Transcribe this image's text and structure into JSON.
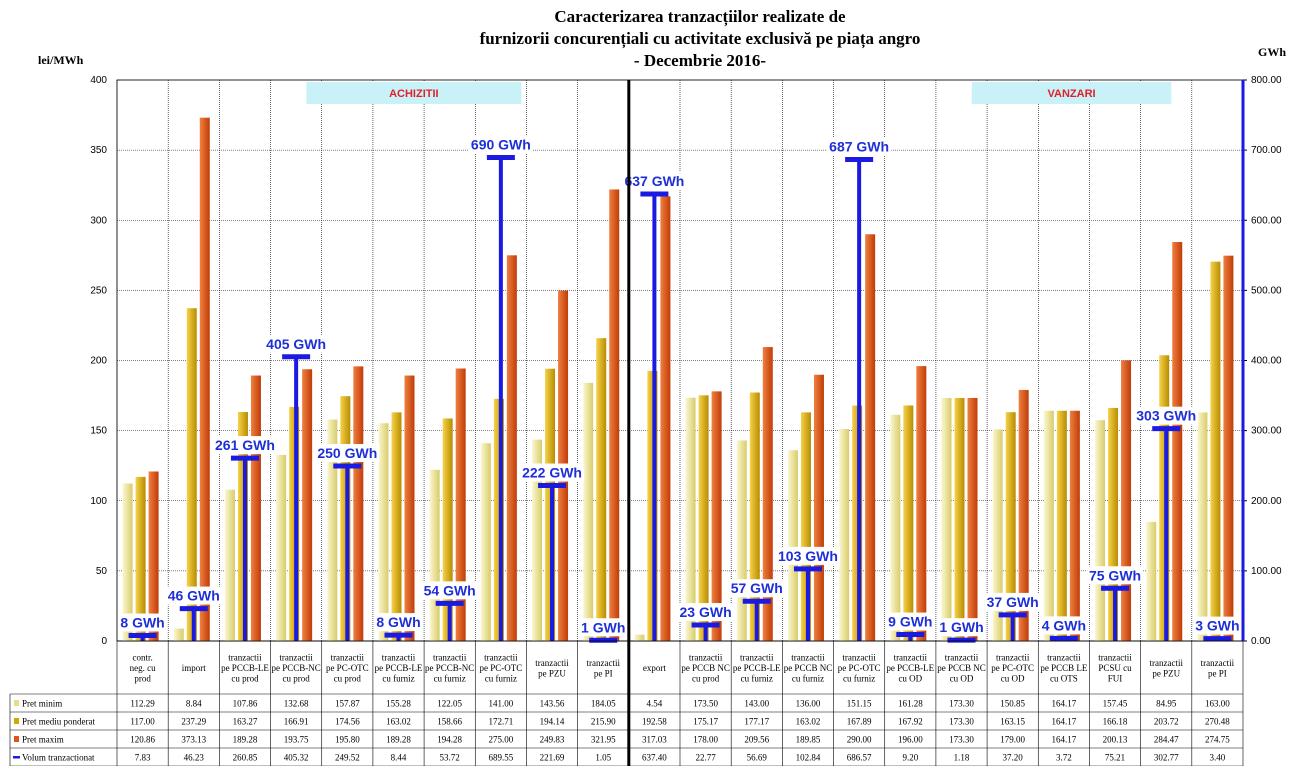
{
  "chart_data": {
    "type": "bar",
    "title_lines": [
      "Caracterizarea tranzacțiilor realizate de",
      "furnizorii concurențiali cu activitate exclusivă pe piața angro",
      "- Decembrie 2016-"
    ],
    "y_left_unit": "lei/MWh",
    "y_right_unit": "GWh",
    "ylim_left": [
      0,
      400
    ],
    "ylim_right": [
      0,
      800
    ],
    "y_left_ticks": [
      "0",
      "50",
      "100",
      "150",
      "200",
      "250",
      "300",
      "350",
      "400"
    ],
    "y_right_ticks": [
      "0.00",
      "100.00",
      "200.00",
      "300.00",
      "400.00",
      "500.00",
      "600.00",
      "700.00",
      "800.00"
    ],
    "sections": [
      "ACHIZITII",
      "VANZARI"
    ],
    "categories": [
      "contr. neg. cu prod",
      "import",
      "tranzactii pe PCCB-LE cu prod",
      "tranzactii pe PCCB-NC cu prod",
      "tranzactii pe PC-OTC cu prod",
      "tranzactii pe PCCB-LE cu furniz",
      "tranzactii pe PCCB-NC cu furniz",
      "tranzactii pe PC-OTC cu furniz",
      "tranzactii pe PZU",
      "tranzactii pe PI",
      "export",
      "tranzactii pe PCCB NC cu prod",
      "tranzactii pe PCCB-LE cu furniz",
      "tranzactii pe PCCB NC cu furniz",
      "tranzactii pe PC-OTC cu furniz",
      "tranzactii pe PCCB-LE cu OD",
      "tranzactii pe PCCB NC cu OD",
      "tranzactii pe PC-OTC cu OD",
      "tranzactii pe PCCB LE cu OTS",
      "tranzactii PCSU cu FUI",
      "tranzactii pe PZU",
      "tranzactii pe PI"
    ],
    "series": [
      {
        "name": "Pret minim",
        "color": "#e6dc8c",
        "values": [
          112.29,
          8.84,
          107.86,
          132.68,
          157.87,
          155.28,
          122.05,
          141.0,
          143.56,
          184.05,
          4.54,
          173.5,
          143.0,
          136.0,
          151.15,
          161.28,
          173.3,
          150.85,
          164.17,
          157.45,
          84.95,
          163.0
        ],
        "labels": [
          "112.29",
          "8.84",
          "107.86",
          "132.68",
          "157.87",
          "155.28",
          "122.05",
          "141.00",
          "143.56",
          "184.05",
          "4.54",
          "173.50",
          "143.00",
          "136.00",
          "151.15",
          "161.28",
          "173.30",
          "150.85",
          "164.17",
          "157.45",
          "84.95",
          "163.00"
        ]
      },
      {
        "name": "Pret mediu ponderat",
        "color": "#d4a800",
        "values": [
          117.0,
          237.29,
          163.27,
          166.91,
          174.56,
          163.02,
          158.66,
          172.71,
          194.14,
          215.9,
          192.58,
          175.17,
          177.17,
          163.02,
          167.89,
          167.92,
          173.3,
          163.15,
          164.17,
          166.18,
          203.72,
          270.48
        ],
        "labels": [
          "117.00",
          "237.29",
          "163.27",
          "166.91",
          "174.56",
          "163.02",
          "158.66",
          "172.71",
          "194.14",
          "215.90",
          "192.58",
          "175.17",
          "177.17",
          "163.02",
          "167.89",
          "167.92",
          "173.30",
          "163.15",
          "164.17",
          "166.18",
          "203.72",
          "270.48"
        ]
      },
      {
        "name": "Pret maxim",
        "color": "#e0541a",
        "values": [
          120.86,
          373.13,
          189.28,
          193.75,
          195.8,
          189.28,
          194.28,
          275.0,
          249.83,
          321.95,
          317.03,
          178.0,
          209.56,
          189.85,
          290.0,
          196.0,
          173.3,
          179.0,
          164.17,
          200.13,
          284.47,
          274.75
        ],
        "labels": [
          "120.86",
          "373.13",
          "189.28",
          "193.75",
          "195.80",
          "189.28",
          "194.28",
          "275.00",
          "249.83",
          "321.95",
          "317.03",
          "178.00",
          "209.56",
          "189.85",
          "290.00",
          "196.00",
          "173.30",
          "179.00",
          "164.17",
          "200.13",
          "284.47",
          "274.75"
        ]
      },
      {
        "name": "Volum tranzactionat",
        "color": "#1a1ae0",
        "axis": "right",
        "values": [
          7.83,
          46.23,
          260.85,
          405.32,
          249.52,
          8.44,
          53.72,
          689.55,
          221.69,
          1.05,
          637.4,
          22.77,
          56.69,
          102.84,
          686.57,
          9.2,
          1.18,
          37.2,
          3.72,
          75.21,
          302.77,
          3.4
        ],
        "labels": [
          "7.83",
          "46.23",
          "260.85",
          "405.32",
          "249.52",
          "8.44",
          "53.72",
          "689.55",
          "221.69",
          "1.05",
          "637.40",
          "22.77",
          "56.69",
          "102.84",
          "686.57",
          "9.20",
          "1.18",
          "37.20",
          "3.72",
          "75.21",
          "302.77",
          "3.40"
        ],
        "point_labels": [
          "8 GWh",
          "46 GWh",
          "261 GWh",
          "405 GWh",
          "250 GWh",
          "8 GWh",
          "54 GWh",
          "690 GWh",
          "222 GWh",
          "1 GWh",
          "637 GWh",
          "23 GWh",
          "57 GWh",
          "103 GWh",
          "687 GWh",
          "9 GWh",
          "1 GWh",
          "37 GWh",
          "4 GWh",
          "75 GWh",
          "303 GWh",
          "3 GWh"
        ]
      }
    ]
  }
}
